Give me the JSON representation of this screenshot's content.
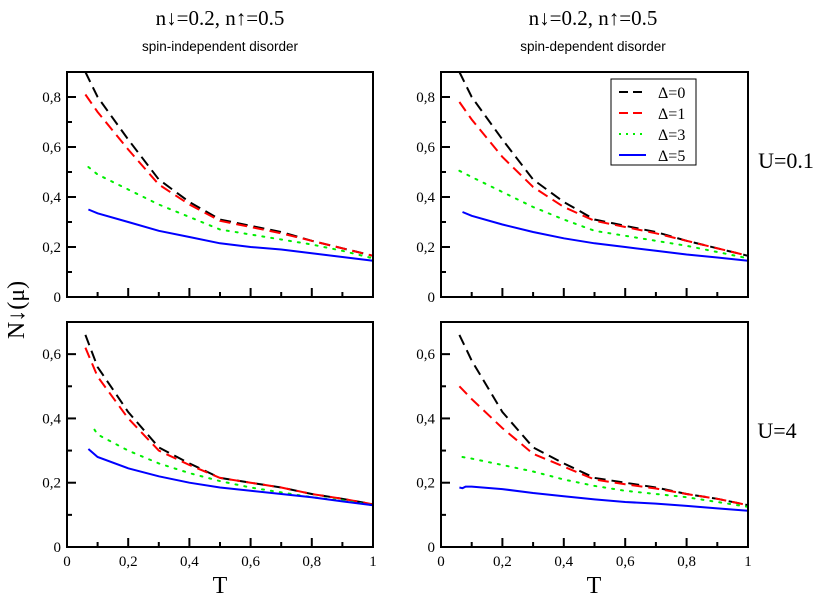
{
  "colors": {
    "delta0": "#000000",
    "delta1": "#ff0000",
    "delta3": "#00ee00",
    "delta5": "#0000ff"
  },
  "column_titles": [
    {
      "title": "n↓=0.2, n↑=0.5",
      "subtitle": "spin-independent disorder"
    },
    {
      "title": "n↓=0.2, n↑=0.5",
      "subtitle": "spin-dependent disorder"
    }
  ],
  "row_labels": [
    "U=0.1",
    "U=4"
  ],
  "ylabel": "N↓(μ)",
  "xlabel": "T",
  "legend": [
    "Δ=0",
    "Δ=1",
    "Δ=3",
    "Δ=5"
  ],
  "chart_data": [
    {
      "type": "line",
      "panel": "top-left",
      "xlim": [
        0,
        1
      ],
      "ylim": [
        0,
        0.9
      ],
      "xticks": [
        "0",
        "0,2",
        "0,4",
        "0,6",
        "0,8",
        "1"
      ],
      "yticks": [
        "0",
        "0,2",
        "0,4",
        "0,6",
        "0,8"
      ],
      "x_tick_labels_shown": false,
      "series": [
        {
          "name": "Δ=0",
          "style": "dash",
          "x": [
            0.06,
            0.1,
            0.2,
            0.3,
            0.4,
            0.5,
            0.6,
            0.7,
            0.8,
            0.9,
            1.0
          ],
          "y": [
            0.9,
            0.8,
            0.63,
            0.47,
            0.38,
            0.31,
            0.285,
            0.26,
            0.225,
            0.195,
            0.165
          ]
        },
        {
          "name": "Δ=1",
          "style": "dash",
          "x": [
            0.06,
            0.1,
            0.2,
            0.3,
            0.4,
            0.5,
            0.6,
            0.7,
            0.8,
            0.9,
            1.0
          ],
          "y": [
            0.81,
            0.74,
            0.59,
            0.45,
            0.37,
            0.305,
            0.28,
            0.255,
            0.225,
            0.195,
            0.165
          ]
        },
        {
          "name": "Δ=3",
          "style": "dot",
          "x": [
            0.07,
            0.1,
            0.2,
            0.3,
            0.4,
            0.5,
            0.6,
            0.7,
            0.8,
            0.9,
            1.0
          ],
          "y": [
            0.52,
            0.49,
            0.43,
            0.37,
            0.32,
            0.27,
            0.25,
            0.23,
            0.21,
            0.185,
            0.155
          ]
        },
        {
          "name": "Δ=5",
          "style": "solid",
          "x": [
            0.07,
            0.1,
            0.2,
            0.3,
            0.4,
            0.5,
            0.6,
            0.7,
            0.8,
            0.9,
            1.0
          ],
          "y": [
            0.35,
            0.335,
            0.3,
            0.265,
            0.24,
            0.215,
            0.2,
            0.19,
            0.175,
            0.16,
            0.145
          ]
        }
      ]
    },
    {
      "type": "line",
      "panel": "top-right",
      "xlim": [
        0,
        1
      ],
      "ylim": [
        0,
        0.9
      ],
      "legend": "top-right",
      "xticks": [
        "0",
        "0,2",
        "0,4",
        "0,6",
        "0,8",
        "1"
      ],
      "yticks": [
        "0",
        "0,2",
        "0,4",
        "0,6",
        "0,8"
      ],
      "x_tick_labels_shown": false,
      "series": [
        {
          "name": "Δ=0",
          "style": "dash",
          "x": [
            0.06,
            0.1,
            0.2,
            0.3,
            0.4,
            0.5,
            0.6,
            0.7,
            0.8,
            0.9,
            1.0
          ],
          "y": [
            0.9,
            0.8,
            0.63,
            0.47,
            0.38,
            0.31,
            0.285,
            0.26,
            0.225,
            0.195,
            0.165
          ]
        },
        {
          "name": "Δ=1",
          "style": "dash",
          "x": [
            0.06,
            0.1,
            0.2,
            0.3,
            0.4,
            0.5,
            0.6,
            0.7,
            0.8,
            0.9,
            1.0
          ],
          "y": [
            0.78,
            0.71,
            0.56,
            0.44,
            0.36,
            0.305,
            0.28,
            0.255,
            0.225,
            0.195,
            0.165
          ]
        },
        {
          "name": "Δ=3",
          "style": "dot",
          "x": [
            0.06,
            0.1,
            0.2,
            0.3,
            0.4,
            0.5,
            0.6,
            0.7,
            0.8,
            0.9,
            1.0
          ],
          "y": [
            0.505,
            0.48,
            0.42,
            0.36,
            0.31,
            0.265,
            0.245,
            0.225,
            0.205,
            0.18,
            0.155
          ]
        },
        {
          "name": "Δ=5",
          "style": "solid",
          "x": [
            0.07,
            0.1,
            0.2,
            0.3,
            0.4,
            0.5,
            0.6,
            0.7,
            0.8,
            0.9,
            1.0
          ],
          "y": [
            0.34,
            0.325,
            0.29,
            0.26,
            0.235,
            0.215,
            0.2,
            0.185,
            0.17,
            0.158,
            0.145
          ]
        }
      ]
    },
    {
      "type": "line",
      "panel": "bottom-left",
      "xlim": [
        0,
        1
      ],
      "ylim": [
        0,
        0.7
      ],
      "xticks": [
        "0",
        "0,2",
        "0,4",
        "0,6",
        "0,8",
        "1"
      ],
      "yticks": [
        "0",
        "0,2",
        "0,4",
        "0,6"
      ],
      "x_tick_labels_shown": true,
      "series": [
        {
          "name": "Δ=0",
          "style": "dash",
          "x": [
            0.06,
            0.1,
            0.2,
            0.3,
            0.4,
            0.5,
            0.6,
            0.7,
            0.8,
            0.9,
            1.0
          ],
          "y": [
            0.66,
            0.56,
            0.42,
            0.31,
            0.26,
            0.215,
            0.2,
            0.185,
            0.165,
            0.15,
            0.133
          ]
        },
        {
          "name": "Δ=1",
          "style": "dash",
          "x": [
            0.06,
            0.1,
            0.2,
            0.3,
            0.4,
            0.5,
            0.6,
            0.7,
            0.8,
            0.9,
            1.0
          ],
          "y": [
            0.62,
            0.53,
            0.4,
            0.3,
            0.255,
            0.215,
            0.2,
            0.185,
            0.165,
            0.15,
            0.133
          ]
        },
        {
          "name": "Δ=3",
          "style": "dot",
          "x": [
            0.09,
            0.1,
            0.2,
            0.3,
            0.4,
            0.5,
            0.6,
            0.7,
            0.8,
            0.9,
            1.0
          ],
          "y": [
            0.365,
            0.35,
            0.3,
            0.26,
            0.23,
            0.205,
            0.185,
            0.17,
            0.155,
            0.145,
            0.13
          ]
        },
        {
          "name": "Δ=5",
          "style": "solid",
          "x": [
            0.07,
            0.1,
            0.2,
            0.3,
            0.4,
            0.5,
            0.6,
            0.7,
            0.8,
            0.9,
            1.0
          ],
          "y": [
            0.305,
            0.28,
            0.245,
            0.22,
            0.2,
            0.185,
            0.175,
            0.165,
            0.155,
            0.142,
            0.13
          ]
        }
      ]
    },
    {
      "type": "line",
      "panel": "bottom-right",
      "xlim": [
        0,
        1
      ],
      "ylim": [
        0,
        0.7
      ],
      "xticks": [
        "0",
        "0,2",
        "0,4",
        "0,6",
        "0,8",
        "1"
      ],
      "yticks": [
        "0",
        "0,2",
        "0,4",
        "0,6"
      ],
      "x_tick_labels_shown": true,
      "series": [
        {
          "name": "Δ=0",
          "style": "dash",
          "x": [
            0.06,
            0.1,
            0.2,
            0.3,
            0.4,
            0.5,
            0.6,
            0.7,
            0.8,
            0.9,
            1.0
          ],
          "y": [
            0.66,
            0.58,
            0.42,
            0.31,
            0.26,
            0.215,
            0.2,
            0.185,
            0.165,
            0.15,
            0.13
          ]
        },
        {
          "name": "Δ=1",
          "style": "dash",
          "x": [
            0.06,
            0.1,
            0.2,
            0.3,
            0.4,
            0.5,
            0.6,
            0.7,
            0.8,
            0.9,
            1.0
          ],
          "y": [
            0.5,
            0.46,
            0.37,
            0.29,
            0.25,
            0.21,
            0.195,
            0.182,
            0.165,
            0.15,
            0.13
          ]
        },
        {
          "name": "Δ=3",
          "style": "dot",
          "x": [
            0.07,
            0.1,
            0.2,
            0.3,
            0.4,
            0.5,
            0.6,
            0.7,
            0.8,
            0.9,
            1.0
          ],
          "y": [
            0.28,
            0.275,
            0.255,
            0.235,
            0.21,
            0.19,
            0.175,
            0.165,
            0.155,
            0.14,
            0.125
          ]
        },
        {
          "name": "Δ=5",
          "style": "solid",
          "x": [
            0.06,
            0.07,
            0.08,
            0.1,
            0.2,
            0.3,
            0.4,
            0.5,
            0.6,
            0.7,
            0.8,
            0.9,
            1.0
          ],
          "y": [
            0.185,
            0.183,
            0.188,
            0.188,
            0.18,
            0.168,
            0.158,
            0.148,
            0.14,
            0.135,
            0.128,
            0.12,
            0.113
          ]
        }
      ]
    }
  ]
}
